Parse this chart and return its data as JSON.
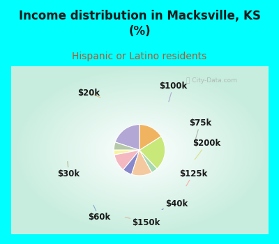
{
  "title": "Income distribution in Macksville, KS\n(%)",
  "subtitle": "Hispanic or Latino residents",
  "title_color": "#1a1a1a",
  "subtitle_color": "#b05a2f",
  "bg_cyan": "#00FFFF",
  "watermark": "City-Data.com",
  "labels": [
    "$100k",
    "$75k",
    "$200k",
    "$125k",
    "$40k",
    "$150k",
    "$60k",
    "$30k",
    "$20k"
  ],
  "values": [
    20,
    5,
    3,
    11,
    6,
    13,
    4,
    22,
    16
  ],
  "colors": [
    "#b3a7d6",
    "#b5c9a8",
    "#f5f5a0",
    "#f4b8c1",
    "#8888cc",
    "#f5c9a0",
    "#a8d8b0",
    "#c8e87a",
    "#f0b460"
  ],
  "startangle": 90,
  "label_fontsize": 8.5,
  "title_fontsize": 12,
  "subtitle_fontsize": 10
}
